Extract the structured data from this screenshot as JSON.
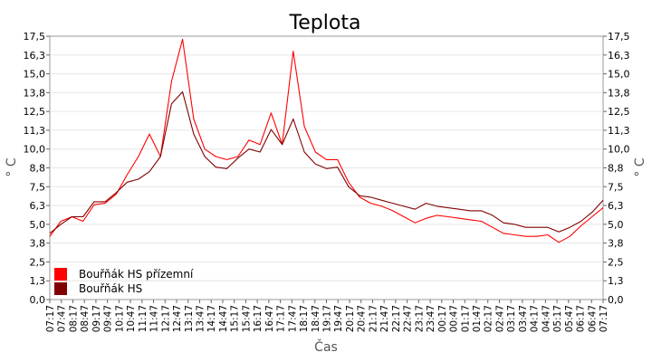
{
  "chart_data": {
    "type": "line",
    "title": "Teplota",
    "xlabel": "Čas",
    "ylabel": "° C",
    "ylim": [
      0,
      17.5
    ],
    "y_ticks": [
      "0,0",
      "1,3",
      "2,5",
      "3,8",
      "5,0",
      "6,3",
      "7,5",
      "8,8",
      "10,0",
      "11,3",
      "12,5",
      "13,8",
      "15,0",
      "16,3",
      "17,5"
    ],
    "x_ticks": [
      "07:17",
      "07:47",
      "08:17",
      "08:47",
      "09:17",
      "09:47",
      "10:17",
      "10:47",
      "11:17",
      "11:47",
      "12:17",
      "12:47",
      "13:17",
      "13:47",
      "14:17",
      "14:47",
      "15:17",
      "15:47",
      "16:17",
      "16:47",
      "17:17",
      "17:47",
      "18:17",
      "18:47",
      "19:17",
      "19:47",
      "20:17",
      "20:47",
      "21:17",
      "21:47",
      "22:17",
      "22:47",
      "23:17",
      "23:47",
      "00:17",
      "00:47",
      "01:17",
      "01:47",
      "02:17",
      "02:47",
      "03:17",
      "03:47",
      "04:17",
      "04:47",
      "05:17",
      "05:47",
      "06:17",
      "06:47",
      "07:17"
    ],
    "grid": true,
    "legend_position": "bottom-left",
    "series": [
      {
        "name": "Bouřňák HS přízemní",
        "color": "#ff0000",
        "values": [
          4.2,
          5.2,
          5.5,
          5.2,
          6.3,
          6.4,
          7.0,
          8.3,
          9.5,
          11.0,
          9.5,
          14.5,
          17.3,
          12.0,
          10.0,
          9.5,
          9.3,
          9.5,
          10.6,
          10.3,
          12.4,
          10.3,
          16.5,
          11.5,
          9.8,
          9.3,
          9.3,
          7.8,
          6.8,
          6.4,
          6.2,
          5.9,
          5.5,
          5.1,
          5.4,
          5.6,
          5.5,
          5.4,
          5.3,
          5.2,
          4.8,
          4.4,
          4.3,
          4.2,
          4.2,
          4.3,
          3.8,
          4.2,
          4.9,
          5.5,
          6.1
        ]
      },
      {
        "name": "Bouřňák HS",
        "color": "#800000",
        "values": [
          4.4,
          5.0,
          5.5,
          5.5,
          6.5,
          6.5,
          7.1,
          7.8,
          8.0,
          8.5,
          9.5,
          13.0,
          13.8,
          11.0,
          9.5,
          8.8,
          8.7,
          9.4,
          10.0,
          9.8,
          11.3,
          10.3,
          12.0,
          9.8,
          9.0,
          8.7,
          8.8,
          7.5,
          6.9,
          6.8,
          6.6,
          6.4,
          6.2,
          6.0,
          6.4,
          6.2,
          6.1,
          6.0,
          5.9,
          5.9,
          5.6,
          5.1,
          5.0,
          4.8,
          4.8,
          4.8,
          4.5,
          4.8,
          5.2,
          5.8,
          6.6
        ]
      }
    ]
  }
}
